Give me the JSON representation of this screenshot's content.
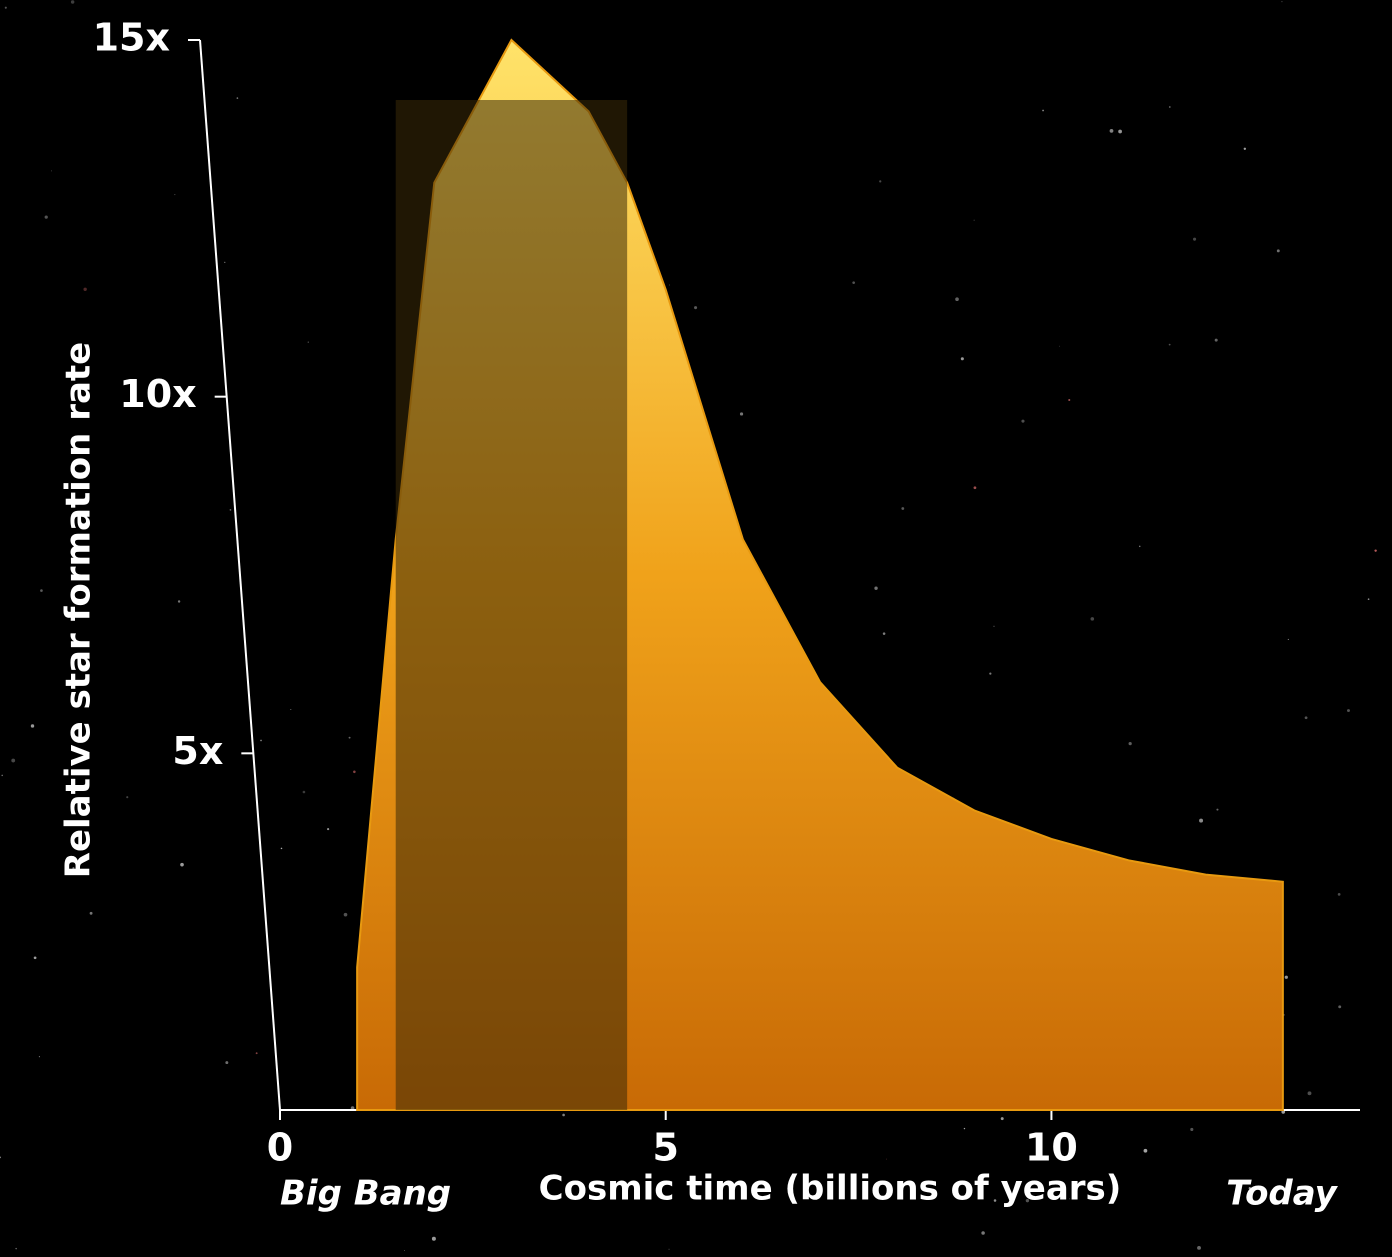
{
  "chart_data": {
    "type": "area",
    "x_label": "Cosmic time (billions of years)",
    "y_label": "Relative star formation rate",
    "x": [
      1,
      1.5,
      2,
      3,
      4,
      4.5,
      5,
      6,
      7,
      8,
      9,
      10,
      11,
      12,
      13
    ],
    "values": [
      2,
      8,
      13,
      15,
      14,
      13,
      11.5,
      8,
      6,
      4.8,
      4.2,
      3.8,
      3.5,
      3.3,
      3.2
    ],
    "color": "#e89a10",
    "highlight_range": [
      1.5,
      4.5
    ],
    "xlim": [
      0,
      14
    ],
    "ylim": [
      0,
      15
    ],
    "xticks": [
      0,
      5,
      10
    ],
    "yticks": [
      {
        "value": 5,
        "label": "5x"
      },
      {
        "value": 10,
        "label": "10x"
      },
      {
        "value": 15,
        "label": "15x"
      }
    ],
    "annotations": [
      {
        "text": "Big Bang",
        "x": 0
      },
      {
        "text": "Today",
        "x": 13.7
      }
    ]
  }
}
